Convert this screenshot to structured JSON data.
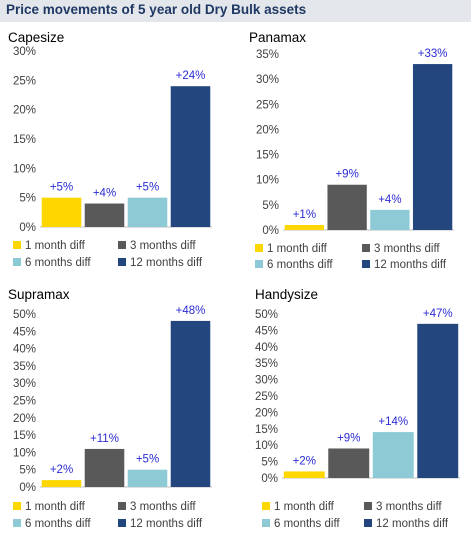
{
  "title": "Price movements of 5 year old Dry Bulk assets",
  "colors": {
    "1 month diff": "#ffd700",
    "3 months diff": "#595959",
    "6 months diff": "#8ecad6",
    "12 months diff": "#24467f",
    "label_text": "#2b2bd4",
    "axis_text": "#404040",
    "title_text": "#1f3864"
  },
  "chart_data": [
    {
      "type": "bar",
      "title": "Capesize",
      "categories": [
        "1 month diff",
        "3 months diff",
        "6 months diff",
        "12 months diff"
      ],
      "values": [
        5,
        4,
        5,
        24
      ],
      "data_labels": [
        "+5%",
        "+4%",
        "+5%",
        "+24%"
      ],
      "yticks": [
        "0%",
        "5%",
        "10%",
        "15%",
        "20%",
        "25%",
        "30%"
      ],
      "ylim": [
        0,
        30
      ],
      "legend": [
        "1 month diff",
        "3 months diff",
        "6 months diff",
        "12 months diff"
      ],
      "legend_position": "bottom"
    },
    {
      "type": "bar",
      "title": "Panamax",
      "categories": [
        "1 month diff",
        "3 months diff",
        "6 months diff",
        "12 months diff"
      ],
      "values": [
        1,
        9,
        4,
        33
      ],
      "data_labels": [
        "+1%",
        "+9%",
        "+4%",
        "+33%"
      ],
      "yticks": [
        "0%",
        "5%",
        "10%",
        "15%",
        "20%",
        "25%",
        "30%",
        "35%"
      ],
      "ylim": [
        0,
        35
      ],
      "legend": [
        "1 month diff",
        "3 months diff",
        "6 months diff",
        "12 months diff"
      ],
      "legend_position": "bottom"
    },
    {
      "type": "bar",
      "title": "Supramax",
      "categories": [
        "1 month diff",
        "3 months diff",
        "6 months diff",
        "12 months diff"
      ],
      "values": [
        2,
        11,
        5,
        48
      ],
      "data_labels": [
        "+2%",
        "+11%",
        "+5%",
        "+48%"
      ],
      "yticks": [
        "0%",
        "5%",
        "10%",
        "15%",
        "20%",
        "25%",
        "30%",
        "35%",
        "40%",
        "45%",
        "50%"
      ],
      "ylim": [
        0,
        50
      ],
      "legend": [
        "1 month diff",
        "3 months diff",
        "6 months diff",
        "12 months diff"
      ],
      "legend_position": "bottom"
    },
    {
      "type": "bar",
      "title": "Handysize",
      "categories": [
        "1 month diff",
        "3 months diff",
        "6 months diff",
        "12 months diff"
      ],
      "values": [
        2,
        9,
        14,
        47
      ],
      "data_labels": [
        "+2%",
        "+9%",
        "+14%",
        "+47%"
      ],
      "yticks": [
        "0%",
        "5%",
        "10%",
        "15%",
        "20%",
        "25%",
        "30%",
        "35%",
        "40%",
        "45%",
        "50%"
      ],
      "ylim": [
        0,
        50
      ],
      "legend": [
        "1 month diff",
        "3 months diff",
        "6 months diff",
        "12 months diff"
      ],
      "legend_position": "bottom"
    }
  ]
}
